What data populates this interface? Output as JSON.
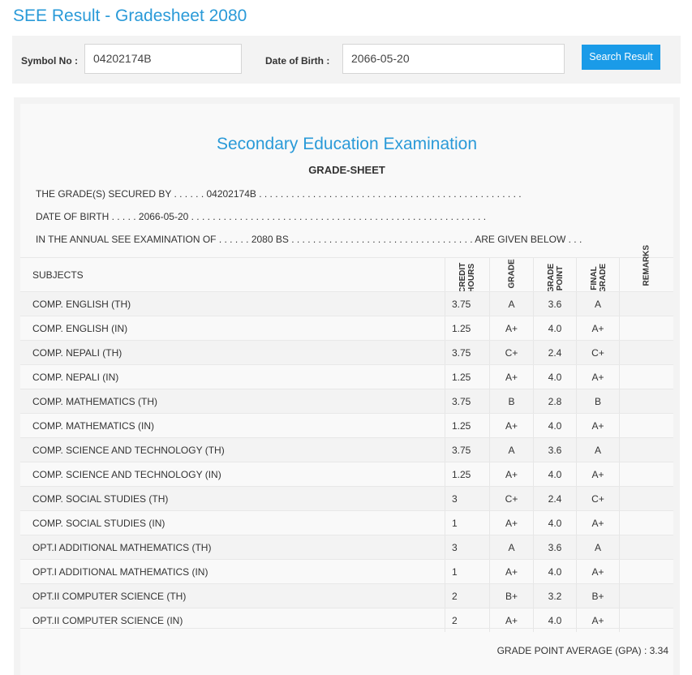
{
  "page": {
    "title": "SEE Result - Gradesheet 2080"
  },
  "search": {
    "symbol_label": "Symbol No :",
    "symbol_value": "04202174B",
    "dob_label": "Date of Birth :",
    "dob_value": "2066-05-20",
    "button_label": "Search Result"
  },
  "sheet": {
    "exam_title": "Secondary Education Examination",
    "sheet_title": "GRADE-SHEET",
    "secured_line": "THE GRADE(S) SECURED BY . . . . . . 04202174B . . . . . . . . . . . . . . . . . . . . . . . . . . . . . . . . . . . . . . . . . . . . . . . . .",
    "dob_line": "DATE OF BIRTH . . . . . 2066-05-20 . . . . . . . . . . . . . . . . . . . . . . . . . . . . . . . . . . . . . . . . . . . . . . . . . . . . . . .",
    "exam_line": "IN THE ANNUAL SEE EXAMINATION OF . . . . . . 2080 BS . . . . . . . . . . . . . . . . . . . . . . . . . . . . . . . . . . ARE GIVEN BELOW . . ."
  },
  "table": {
    "headers": {
      "subjects": "SUBJECTS",
      "credit_hours": [
        "CREDIT",
        "HOURS"
      ],
      "grade": "GRADE",
      "grade_point": [
        "GRADE",
        "POINT"
      ],
      "final_grade": [
        "FINAL",
        "GRADE"
      ],
      "remarks": "REMARKS"
    },
    "rows": [
      {
        "subject": "COMP. ENGLISH (TH)",
        "credit": "3.75",
        "grade": "A",
        "point": "3.6",
        "final": "A",
        "remarks": ""
      },
      {
        "subject": "COMP. ENGLISH (IN)",
        "credit": "1.25",
        "grade": "A+",
        "point": "4.0",
        "final": "A+",
        "remarks": ""
      },
      {
        "subject": "COMP. NEPALI (TH)",
        "credit": "3.75",
        "grade": "C+",
        "point": "2.4",
        "final": "C+",
        "remarks": ""
      },
      {
        "subject": "COMP. NEPALI (IN)",
        "credit": "1.25",
        "grade": "A+",
        "point": "4.0",
        "final": "A+",
        "remarks": ""
      },
      {
        "subject": "COMP. MATHEMATICS (TH)",
        "credit": "3.75",
        "grade": "B",
        "point": "2.8",
        "final": "B",
        "remarks": ""
      },
      {
        "subject": "COMP. MATHEMATICS (IN)",
        "credit": "1.25",
        "grade": "A+",
        "point": "4.0",
        "final": "A+",
        "remarks": ""
      },
      {
        "subject": "COMP. SCIENCE AND TECHNOLOGY (TH)",
        "credit": "3.75",
        "grade": "A",
        "point": "3.6",
        "final": "A",
        "remarks": ""
      },
      {
        "subject": "COMP. SCIENCE AND TECHNOLOGY (IN)",
        "credit": "1.25",
        "grade": "A+",
        "point": "4.0",
        "final": "A+",
        "remarks": ""
      },
      {
        "subject": "COMP. SOCIAL STUDIES (TH)",
        "credit": "3",
        "grade": "C+",
        "point": "2.4",
        "final": "C+",
        "remarks": ""
      },
      {
        "subject": "COMP. SOCIAL STUDIES (IN)",
        "credit": "1",
        "grade": "A+",
        "point": "4.0",
        "final": "A+",
        "remarks": ""
      },
      {
        "subject": "OPT.I ADDITIONAL MATHEMATICS (TH)",
        "credit": "3",
        "grade": "A",
        "point": "3.6",
        "final": "A",
        "remarks": ""
      },
      {
        "subject": "OPT.I ADDITIONAL MATHEMATICS (IN)",
        "credit": "1",
        "grade": "A+",
        "point": "4.0",
        "final": "A+",
        "remarks": ""
      },
      {
        "subject": "OPT.II COMPUTER SCIENCE (TH)",
        "credit": "2",
        "grade": "B+",
        "point": "3.2",
        "final": "B+",
        "remarks": ""
      },
      {
        "subject": "OPT.II COMPUTER SCIENCE (IN)",
        "credit": "2",
        "grade": "A+",
        "point": "4.0",
        "final": "A+",
        "remarks": ""
      }
    ]
  },
  "gpa": {
    "text": "GRADE POINT AVERAGE (GPA) : 3.34"
  },
  "colors": {
    "accent": "#2a9ad8",
    "button": "#1a9be8",
    "panel": "#f3f3f3"
  }
}
